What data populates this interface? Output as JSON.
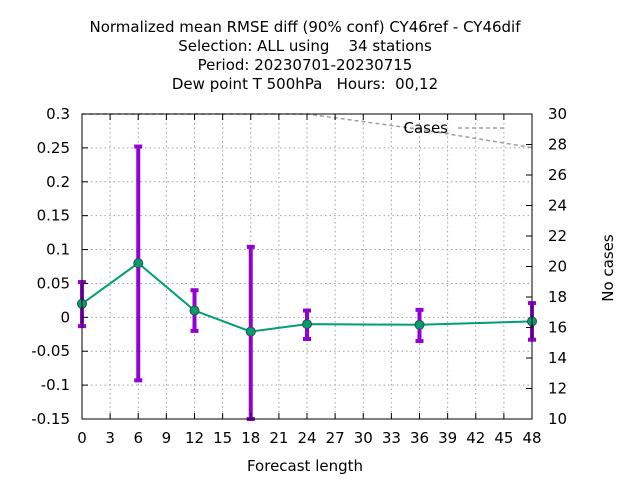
{
  "chart_data": {
    "type": "line",
    "title_lines": [
      "Normalized mean RMSE diff (90% conf) CY46ref - CY46dif",
      "Selection: ALL using    34 stations",
      "Period: 20230701-20230715",
      "Dew point T 500hPa   Hours:  00,12"
    ],
    "xlabel": "Forecast length",
    "ylabel": "",
    "y2label": "No cases",
    "xlim": [
      0,
      48
    ],
    "ylim": [
      -0.15,
      0.3
    ],
    "y2lim": [
      10,
      30
    ],
    "grid": true,
    "legend_position": "top-right",
    "x_ticks": [
      0,
      3,
      6,
      9,
      12,
      15,
      18,
      21,
      24,
      27,
      30,
      33,
      36,
      39,
      42,
      45,
      48
    ],
    "y_ticks": [
      -0.15,
      -0.1,
      -0.05,
      0,
      0.05,
      0.1,
      0.15,
      0.2,
      0.25,
      0.3
    ],
    "y_tick_labels": [
      "-0.15",
      "-0.1",
      "-0.05",
      "0",
      "0.05",
      "0.1",
      "0.15",
      "0.2",
      "0.25",
      "0.3"
    ],
    "y2_ticks": [
      10,
      12,
      14,
      16,
      18,
      20,
      22,
      24,
      26,
      28,
      30
    ],
    "series": [
      {
        "values": [
          {
            "x": 0,
            "y": 0.02,
            "low": -0.013,
            "high": 0.052
          },
          {
            "x": 6,
            "y": 0.08,
            "low": -0.093,
            "high": 0.252
          },
          {
            "x": 12,
            "y": 0.01,
            "low": -0.02,
            "high": 0.04
          },
          {
            "x": 18,
            "y": -0.021,
            "low": -0.15,
            "high": 0.104
          },
          {
            "x": 24,
            "y": -0.01,
            "low": -0.032,
            "high": 0.01
          },
          {
            "x": 36,
            "y": -0.011,
            "low": -0.035,
            "high": 0.011
          },
          {
            "x": 48,
            "y": -0.006,
            "low": -0.033,
            "high": 0.021
          }
        ],
        "line_color": "#009e73",
        "errorbar_color": "#9400d3"
      },
      {
        "name": "Cases",
        "axis": "y2",
        "values": [
          {
            "x": 0,
            "y": 30
          },
          {
            "x": 6,
            "y": 30
          },
          {
            "x": 12,
            "y": 30
          },
          {
            "x": 18,
            "y": 30
          },
          {
            "x": 24,
            "y": 30
          },
          {
            "x": 36,
            "y": 29
          },
          {
            "x": 48,
            "y": 27.8
          }
        ],
        "line_color": "#a0a0a0",
        "dashed": true
      }
    ]
  }
}
